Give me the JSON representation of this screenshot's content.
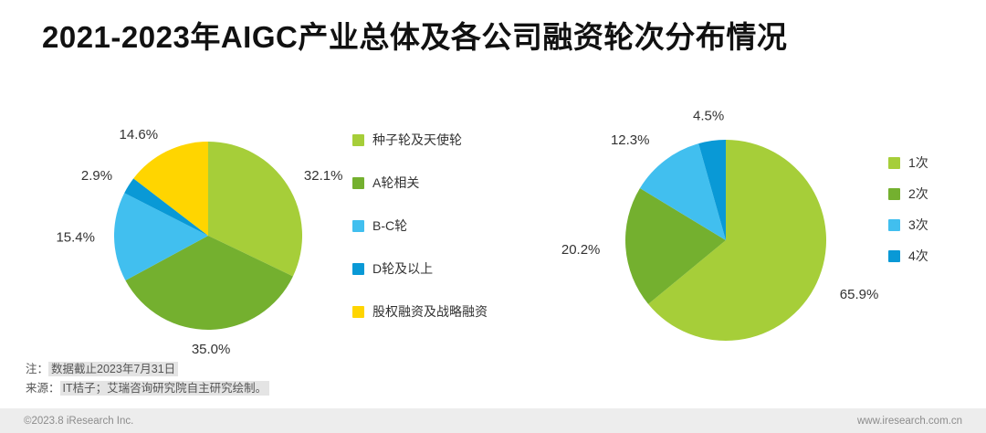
{
  "title": "2021-2023年AIGC产业总体及各公司融资轮次分布情况",
  "chart_data": [
    {
      "type": "pie",
      "labels": [
        "种子轮及天使轮",
        "A轮相关",
        "B-C轮",
        "D轮及以上",
        "股权融资及战略融资"
      ],
      "values": [
        32.1,
        35.0,
        15.4,
        2.9,
        14.6
      ],
      "display": [
        "32.1%",
        "35.0%",
        "15.4%",
        "2.9%",
        "14.6%"
      ],
      "colors": [
        "#a6ce39",
        "#74b02f",
        "#41bfef",
        "#0999d6",
        "#ffd500"
      ],
      "legend_position": "right",
      "start_angle_deg": 0,
      "direction": "clockwise"
    },
    {
      "type": "pie",
      "labels": [
        "1次",
        "2次",
        "3次",
        "4次"
      ],
      "values": [
        65.9,
        20.2,
        12.3,
        4.5
      ],
      "display": [
        "65.9%",
        "20.2%",
        "12.3%",
        "4.5%"
      ],
      "colors": [
        "#a6ce39",
        "#74b02f",
        "#41bfef",
        "#0999d6"
      ],
      "legend_position": "right",
      "start_angle_deg": 0,
      "direction": "clockwise"
    }
  ],
  "notes": [
    {
      "prefix": "注：",
      "text": "数据截止2023年7月31日"
    },
    {
      "prefix": "来源：",
      "text": "IT桔子；艾瑞咨询研究院自主研究绘制。"
    }
  ],
  "footer": {
    "copyright": "©2023.8 iResearch Inc.",
    "website": "www.iresearch.com.cn"
  }
}
